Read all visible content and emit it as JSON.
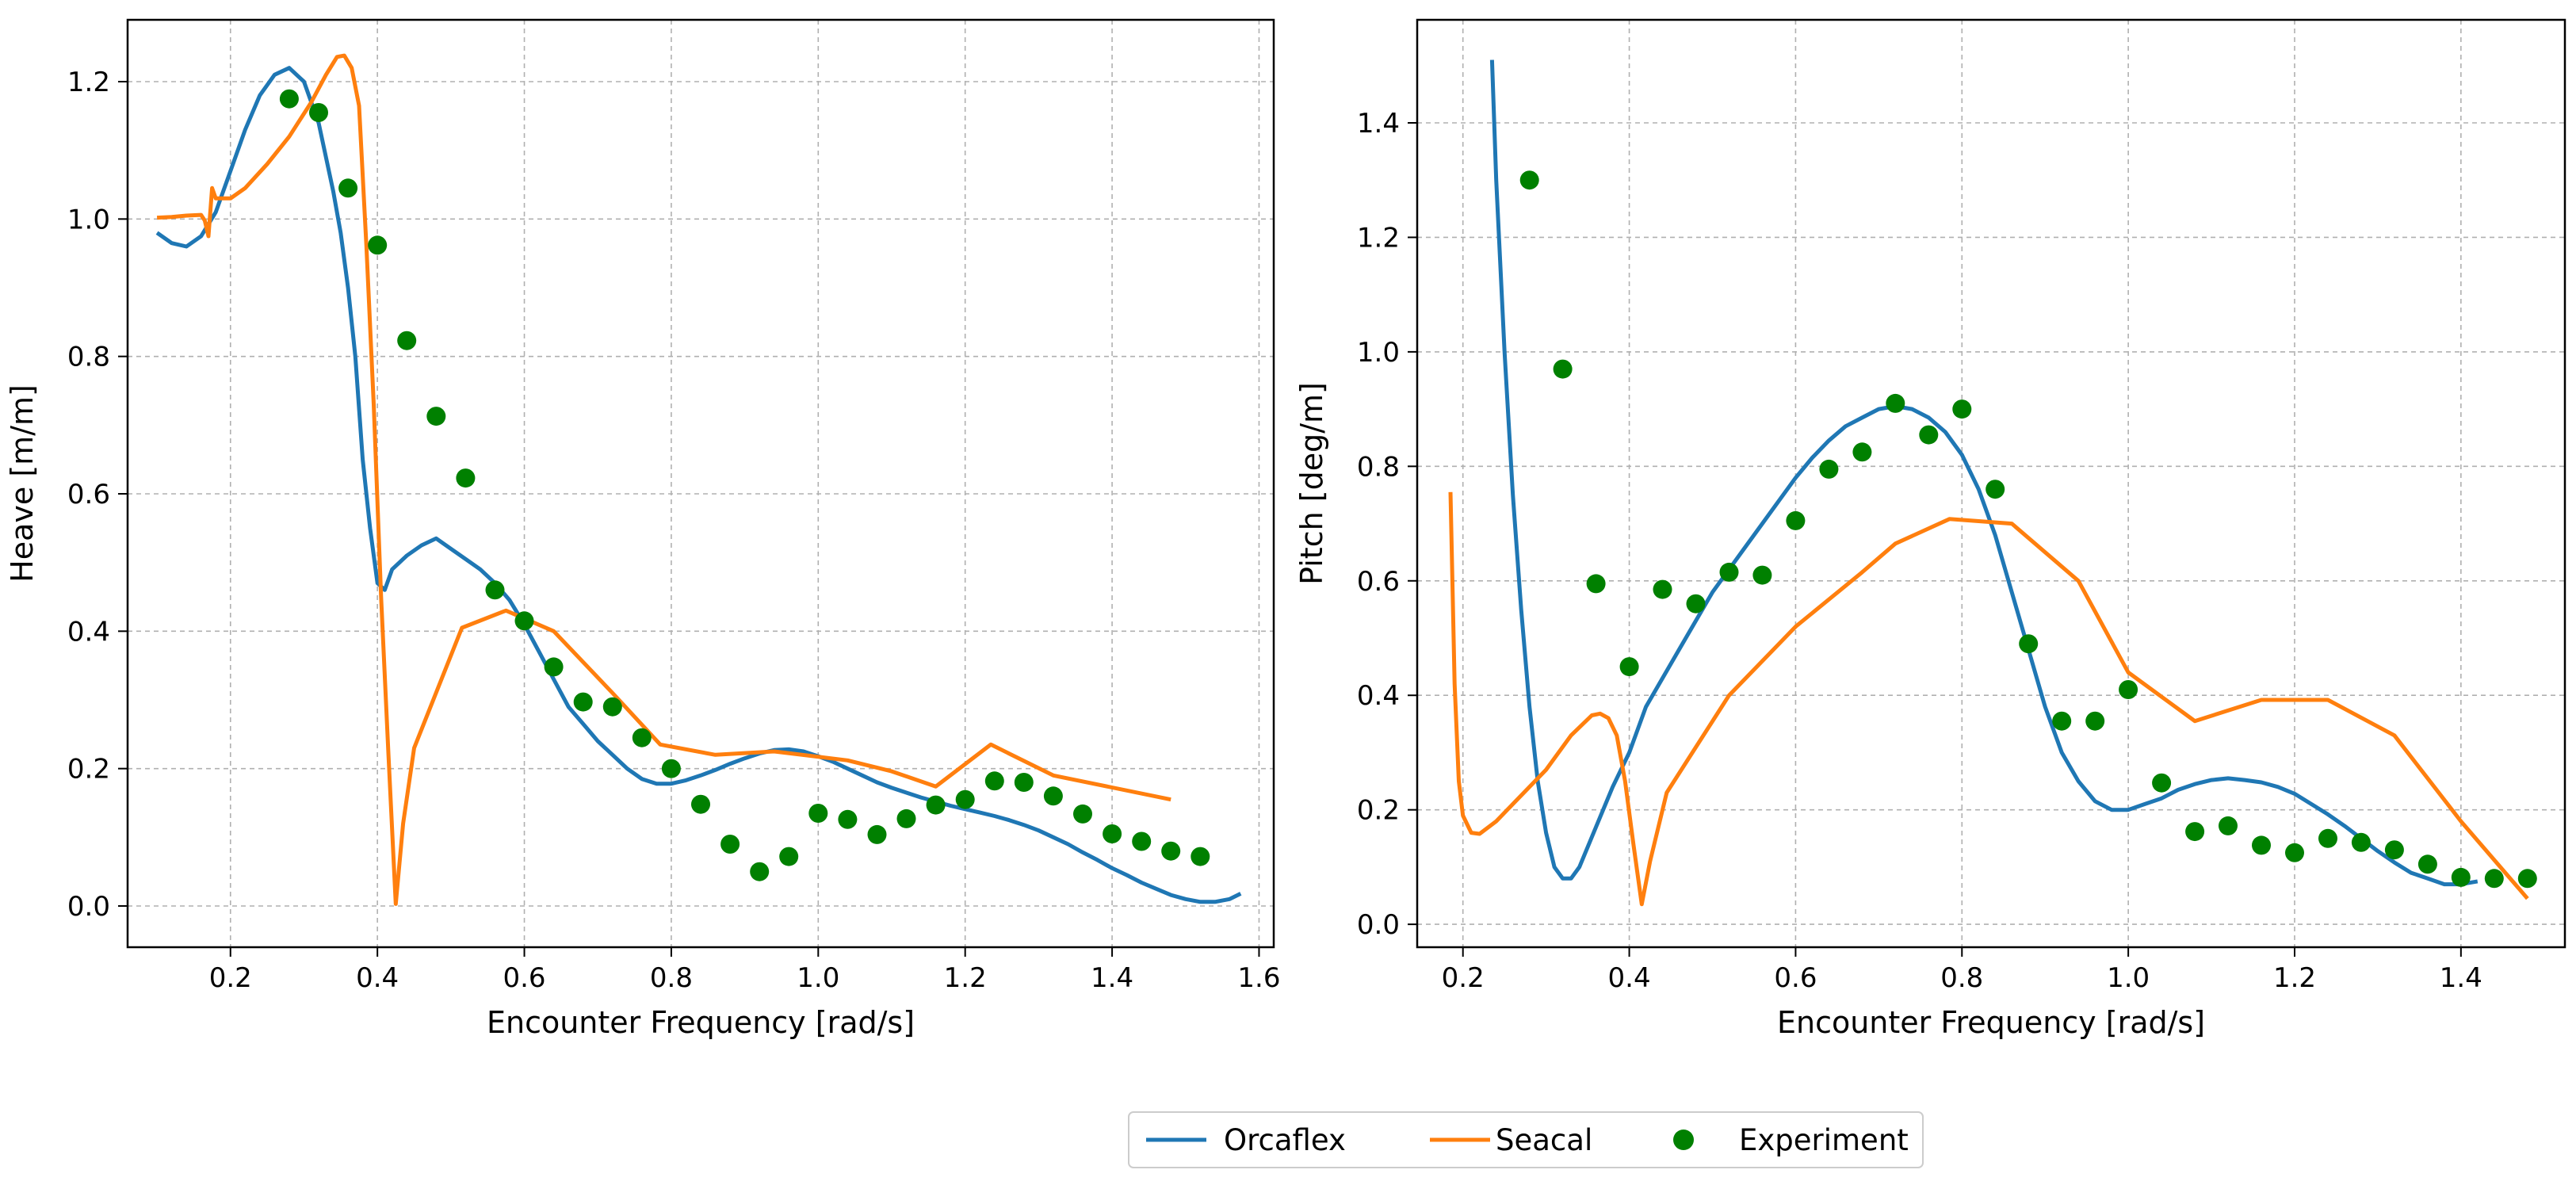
{
  "colors": {
    "orcaflex": "#1f77b4",
    "seacal": "#ff7f0e",
    "experiment": "#008000"
  },
  "legend": {
    "entries": [
      "Orcaflex",
      "Seacal",
      "Experiment"
    ]
  },
  "chart_data": [
    {
      "type": "line",
      "panel": "heave",
      "xlabel": "Encounter Frequency [rad/s]",
      "ylabel": "Heave [m/m]",
      "xlim": [
        0.06,
        1.62
      ],
      "ylim": [
        -0.06,
        1.29
      ],
      "xticks": [
        0.2,
        0.4,
        0.6,
        0.8,
        1.0,
        1.2,
        1.4,
        1.6
      ],
      "xtick_labels": [
        "0.2",
        "0.4",
        "0.6",
        "0.8",
        "1.0",
        "1.2",
        "1.4",
        "1.6"
      ],
      "yticks": [
        0.0,
        0.2,
        0.4,
        0.6,
        0.8,
        1.0,
        1.2
      ],
      "ytick_labels": [
        "0.0",
        "0.2",
        "0.4",
        "0.6",
        "0.8",
        "1.0",
        "1.2"
      ],
      "grid": true,
      "series": [
        {
          "name": "Orcaflex",
          "kind": "line",
          "x": [
            0.1,
            0.12,
            0.14,
            0.16,
            0.18,
            0.2,
            0.22,
            0.24,
            0.26,
            0.28,
            0.3,
            0.32,
            0.34,
            0.35,
            0.36,
            0.37,
            0.38,
            0.39,
            0.4,
            0.41,
            0.42,
            0.44,
            0.46,
            0.48,
            0.5,
            0.52,
            0.54,
            0.56,
            0.58,
            0.6,
            0.62,
            0.64,
            0.66,
            0.68,
            0.7,
            0.72,
            0.74,
            0.76,
            0.78,
            0.8,
            0.82,
            0.84,
            0.86,
            0.88,
            0.9,
            0.92,
            0.94,
            0.96,
            0.98,
            1.0,
            1.02,
            1.04,
            1.06,
            1.08,
            1.1,
            1.12,
            1.14,
            1.16,
            1.18,
            1.2,
            1.22,
            1.24,
            1.26,
            1.28,
            1.3,
            1.32,
            1.34,
            1.36,
            1.38,
            1.4,
            1.42,
            1.44,
            1.46,
            1.48,
            1.5,
            1.52,
            1.54,
            1.56,
            1.575
          ],
          "y": [
            0.98,
            0.965,
            0.96,
            0.975,
            1.01,
            1.07,
            1.13,
            1.18,
            1.21,
            1.22,
            1.2,
            1.14,
            1.04,
            0.98,
            0.9,
            0.8,
            0.65,
            0.55,
            0.47,
            0.46,
            0.49,
            0.51,
            0.525,
            0.535,
            0.52,
            0.505,
            0.49,
            0.47,
            0.445,
            0.41,
            0.37,
            0.33,
            0.29,
            0.265,
            0.24,
            0.22,
            0.2,
            0.185,
            0.178,
            0.178,
            0.183,
            0.19,
            0.198,
            0.207,
            0.215,
            0.222,
            0.227,
            0.228,
            0.225,
            0.218,
            0.21,
            0.2,
            0.19,
            0.18,
            0.172,
            0.165,
            0.158,
            0.152,
            0.146,
            0.141,
            0.136,
            0.131,
            0.125,
            0.118,
            0.11,
            0.1,
            0.09,
            0.078,
            0.067,
            0.055,
            0.045,
            0.034,
            0.025,
            0.016,
            0.01,
            0.006,
            0.006,
            0.01,
            0.018
          ]
        },
        {
          "name": "Seacal",
          "kind": "line",
          "x": [
            0.1,
            0.12,
            0.14,
            0.16,
            0.165,
            0.17,
            0.175,
            0.18,
            0.2,
            0.22,
            0.25,
            0.28,
            0.31,
            0.33,
            0.345,
            0.355,
            0.365,
            0.375,
            0.385,
            0.395,
            0.405,
            0.415,
            0.425,
            0.435,
            0.45,
            0.515,
            0.575,
            0.64,
            0.72,
            0.785,
            0.86,
            0.94,
            1.04,
            1.1,
            1.16,
            1.235,
            1.32,
            1.48
          ],
          "y": [
            1.002,
            1.003,
            1.005,
            1.006,
            0.998,
            0.975,
            1.045,
            1.03,
            1.03,
            1.045,
            1.08,
            1.12,
            1.17,
            1.21,
            1.236,
            1.238,
            1.22,
            1.165,
            0.96,
            0.73,
            0.45,
            0.22,
            0.003,
            0.12,
            0.23,
            0.405,
            0.43,
            0.4,
            0.31,
            0.235,
            0.22,
            0.225,
            0.212,
            0.196,
            0.174,
            0.235,
            0.19,
            0.155
          ]
        },
        {
          "name": "Experiment",
          "kind": "scatter",
          "x": [
            0.28,
            0.32,
            0.36,
            0.4,
            0.44,
            0.48,
            0.52,
            0.56,
            0.6,
            0.64,
            0.68,
            0.72,
            0.76,
            0.8,
            0.84,
            0.88,
            0.92,
            0.96,
            1.0,
            1.04,
            1.08,
            1.12,
            1.16,
            1.2,
            1.24,
            1.28,
            1.32,
            1.36,
            1.4,
            1.44,
            1.48,
            1.52
          ],
          "y": [
            1.175,
            1.155,
            1.045,
            0.962,
            0.823,
            0.713,
            0.623,
            0.46,
            0.415,
            0.348,
            0.297,
            0.29,
            0.245,
            0.2,
            0.148,
            0.09,
            0.05,
            0.072,
            0.135,
            0.126,
            0.104,
            0.127,
            0.147,
            0.155,
            0.182,
            0.18,
            0.16,
            0.134,
            0.105,
            0.094,
            0.08,
            0.072
          ]
        }
      ]
    },
    {
      "type": "line",
      "panel": "pitch",
      "xlabel": "Encounter Frequency [rad/s]",
      "ylabel": "Pitch [deg/m]",
      "xlim": [
        0.145,
        1.525
      ],
      "ylim": [
        -0.04,
        1.58
      ],
      "xticks": [
        0.2,
        0.4,
        0.6,
        0.8,
        1.0,
        1.2,
        1.4
      ],
      "xtick_labels": [
        "0.2",
        "0.4",
        "0.6",
        "0.8",
        "1.0",
        "1.2",
        "1.4"
      ],
      "yticks": [
        0.0,
        0.2,
        0.4,
        0.6,
        0.8,
        1.0,
        1.2,
        1.4
      ],
      "ytick_labels": [
        "0.0",
        "0.2",
        "0.4",
        "0.6",
        "0.8",
        "1.0",
        "1.2",
        "1.4"
      ],
      "grid": true,
      "series": [
        {
          "name": "Orcaflex",
          "kind": "line",
          "x": [
            0.235,
            0.24,
            0.25,
            0.26,
            0.27,
            0.28,
            0.29,
            0.3,
            0.31,
            0.32,
            0.33,
            0.34,
            0.36,
            0.38,
            0.4,
            0.42,
            0.44,
            0.46,
            0.48,
            0.5,
            0.52,
            0.54,
            0.56,
            0.58,
            0.6,
            0.62,
            0.64,
            0.66,
            0.68,
            0.7,
            0.72,
            0.74,
            0.76,
            0.78,
            0.8,
            0.82,
            0.84,
            0.86,
            0.88,
            0.9,
            0.92,
            0.94,
            0.96,
            0.98,
            1.0,
            1.02,
            1.04,
            1.06,
            1.08,
            1.1,
            1.12,
            1.14,
            1.16,
            1.18,
            1.2,
            1.22,
            1.24,
            1.26,
            1.28,
            1.3,
            1.32,
            1.34,
            1.36,
            1.38,
            1.4,
            1.42
          ],
          "y": [
            1.51,
            1.3,
            1.0,
            0.75,
            0.55,
            0.38,
            0.25,
            0.16,
            0.1,
            0.08,
            0.08,
            0.1,
            0.17,
            0.24,
            0.3,
            0.38,
            0.43,
            0.48,
            0.53,
            0.58,
            0.62,
            0.66,
            0.7,
            0.74,
            0.78,
            0.815,
            0.845,
            0.87,
            0.885,
            0.9,
            0.905,
            0.9,
            0.885,
            0.86,
            0.82,
            0.76,
            0.68,
            0.58,
            0.48,
            0.38,
            0.3,
            0.25,
            0.215,
            0.2,
            0.2,
            0.21,
            0.22,
            0.235,
            0.245,
            0.252,
            0.255,
            0.252,
            0.248,
            0.24,
            0.228,
            0.21,
            0.192,
            0.172,
            0.15,
            0.128,
            0.108,
            0.09,
            0.08,
            0.07,
            0.07,
            0.075
          ]
        },
        {
          "name": "Seacal",
          "kind": "line",
          "x": [
            0.185,
            0.19,
            0.195,
            0.2,
            0.21,
            0.22,
            0.24,
            0.26,
            0.3,
            0.33,
            0.355,
            0.365,
            0.375,
            0.385,
            0.395,
            0.405,
            0.415,
            0.425,
            0.445,
            0.52,
            0.6,
            0.68,
            0.72,
            0.785,
            0.86,
            0.94,
            1.0,
            1.08,
            1.16,
            1.24,
            1.32,
            1.4,
            1.48
          ],
          "y": [
            0.755,
            0.42,
            0.25,
            0.19,
            0.16,
            0.158,
            0.18,
            0.21,
            0.27,
            0.33,
            0.365,
            0.368,
            0.36,
            0.33,
            0.25,
            0.14,
            0.035,
            0.11,
            0.23,
            0.4,
            0.52,
            0.615,
            0.665,
            0.708,
            0.7,
            0.6,
            0.44,
            0.355,
            0.392,
            0.392,
            0.33,
            0.18,
            0.045
          ]
        },
        {
          "name": "Experiment",
          "kind": "scatter",
          "x": [
            0.28,
            0.32,
            0.36,
            0.4,
            0.44,
            0.48,
            0.52,
            0.56,
            0.6,
            0.64,
            0.68,
            0.72,
            0.76,
            0.8,
            0.84,
            0.88,
            0.92,
            0.96,
            1.0,
            1.04,
            1.08,
            1.12,
            1.16,
            1.2,
            1.24,
            1.28,
            1.32,
            1.36,
            1.4,
            1.44,
            1.48
          ],
          "y": [
            1.3,
            0.97,
            0.595,
            0.45,
            0.585,
            0.56,
            0.615,
            0.61,
            0.705,
            0.795,
            0.825,
            0.91,
            0.855,
            0.9,
            0.76,
            0.49,
            0.355,
            0.355,
            0.41,
            0.247,
            0.162,
            0.172,
            0.138,
            0.125,
            0.15,
            0.143,
            0.13,
            0.105,
            0.082,
            0.08,
            0.08
          ]
        }
      ]
    }
  ]
}
